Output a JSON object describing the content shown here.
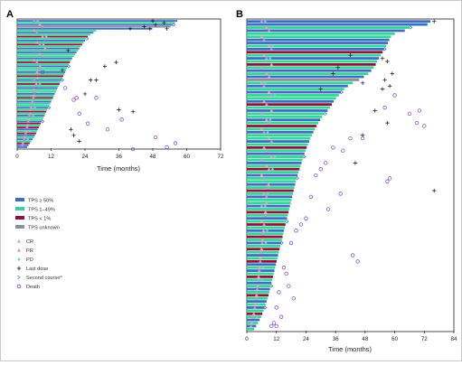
{
  "panels": {
    "A": {
      "letter": "A",
      "x_ticks": [
        "0",
        "12",
        "24",
        "36",
        "48",
        "60",
        "72"
      ],
      "xlabel": "Time (months)"
    },
    "B": {
      "letter": "B",
      "x_ticks": [
        "0",
        "12",
        "24",
        "36",
        "48",
        "60",
        "72",
        "84"
      ],
      "xlabel": "Time (months)"
    }
  },
  "legend": {
    "tps": [
      {
        "label": "TPS ≥ 50%",
        "color": "#3b6fc0"
      },
      {
        "label": "TPS 1–49%",
        "color": "#35d49a"
      },
      {
        "label": "TPS < 1%",
        "color": "#8b1538"
      },
      {
        "label": "TPS unknown",
        "color": "#8a9098"
      }
    ],
    "markers": [
      {
        "label": "CR",
        "symbol": "triangle",
        "color": "#e8a6a0"
      },
      {
        "label": "PR",
        "symbol": "triangle",
        "color": "#b79ae0"
      },
      {
        "label": "PD",
        "symbol": "diamond",
        "color": "#6ad6c8"
      },
      {
        "label": "Last dose",
        "symbol": "plus",
        "color": "#111111"
      },
      {
        "label": "Second course",
        "superscript": "a",
        "symbol": "chevron",
        "color": "#4a6fd0"
      },
      {
        "label": "Death",
        "symbol": "circle",
        "color": "#7a3fc8"
      }
    ]
  },
  "chart_data": [
    {
      "type": "bar",
      "panel": "A",
      "orientation": "horizontal swimmer plot",
      "xlabel": "Time (months)",
      "xlim": [
        0,
        72
      ],
      "n_patients": 65,
      "bars_top_to_bottom": [
        {
          "v": 56.7,
          "t": 0
        },
        {
          "v": 55.9,
          "t": 1
        },
        {
          "v": 55.1,
          "t": 0
        },
        {
          "v": 54.3,
          "t": 3
        },
        {
          "v": 47.8,
          "t": 0
        },
        {
          "v": 28,
          "t": 1
        },
        {
          "v": 27,
          "t": 0
        },
        {
          "v": 26,
          "t": 1
        },
        {
          "v": 25,
          "t": 2
        },
        {
          "v": 24.5,
          "t": 1
        },
        {
          "v": 24,
          "t": 0
        },
        {
          "v": 23.5,
          "t": 1
        },
        {
          "v": 23,
          "t": 2
        },
        {
          "v": 22.5,
          "t": 1
        },
        {
          "v": 22,
          "t": 0
        },
        {
          "v": 21.5,
          "t": 1
        },
        {
          "v": 21,
          "t": 0
        },
        {
          "v": 20.5,
          "t": 1
        },
        {
          "v": 20,
          "t": 1
        },
        {
          "v": 19.5,
          "t": 0
        },
        {
          "v": 19,
          "t": 1
        },
        {
          "v": 18.7,
          "t": 2
        },
        {
          "v": 18.3,
          "t": 1
        },
        {
          "v": 18,
          "t": 0
        },
        {
          "v": 17.7,
          "t": 1
        },
        {
          "v": 17.3,
          "t": 1
        },
        {
          "v": 17,
          "t": 0
        },
        {
          "v": 16.7,
          "t": 1
        },
        {
          "v": 16.3,
          "t": 2
        },
        {
          "v": 16,
          "t": 1
        },
        {
          "v": 15.7,
          "t": 0
        },
        {
          "v": 15.3,
          "t": 1
        },
        {
          "v": 15,
          "t": 2
        },
        {
          "v": 14.7,
          "t": 1
        },
        {
          "v": 14.3,
          "t": 0
        },
        {
          "v": 14,
          "t": 1
        },
        {
          "v": 13.7,
          "t": 1
        },
        {
          "v": 13.3,
          "t": 0
        },
        {
          "v": 13,
          "t": 1
        },
        {
          "v": 12.7,
          "t": 2
        },
        {
          "v": 12.3,
          "t": 1
        },
        {
          "v": 12,
          "t": 0
        },
        {
          "v": 11.7,
          "t": 1
        },
        {
          "v": 11.3,
          "t": 1
        },
        {
          "v": 11,
          "t": 0
        },
        {
          "v": 10.7,
          "t": 1
        },
        {
          "v": 10.3,
          "t": 2
        },
        {
          "v": 10,
          "t": 1
        },
        {
          "v": 9.7,
          "t": 0
        },
        {
          "v": 9.3,
          "t": 1
        },
        {
          "v": 9,
          "t": 1
        },
        {
          "v": 8.7,
          "t": 0
        },
        {
          "v": 8.3,
          "t": 2
        },
        {
          "v": 8,
          "t": 1
        },
        {
          "v": 7.7,
          "t": 2
        },
        {
          "v": 7.3,
          "t": 0
        },
        {
          "v": 7,
          "t": 1
        },
        {
          "v": 6.7,
          "t": 2
        },
        {
          "v": 6.3,
          "t": 0
        },
        {
          "v": 6,
          "t": 1
        },
        {
          "v": 5.5,
          "t": 0
        },
        {
          "v": 5,
          "t": 1
        },
        {
          "v": 4.5,
          "t": 2
        },
        {
          "v": 4,
          "t": 0
        },
        {
          "v": 3.5,
          "t": 0
        }
      ],
      "deaths": [
        [
          9,
          26
        ],
        [
          17,
          34
        ],
        [
          21,
          39
        ],
        [
          20,
          40
        ],
        [
          22,
          47
        ],
        [
          28,
          39
        ],
        [
          41,
          65
        ],
        [
          37,
          50
        ],
        [
          25,
          52
        ],
        [
          32,
          55
        ],
        [
          49,
          59
        ],
        [
          56,
          62
        ],
        [
          53,
          64
        ]
      ],
      "last_doses": [
        [
          24,
          37
        ],
        [
          31,
          23
        ],
        [
          28,
          30
        ],
        [
          35,
          21
        ],
        [
          48,
          0
        ],
        [
          49,
          2
        ],
        [
          45,
          3
        ],
        [
          53,
          4
        ],
        [
          40,
          4
        ],
        [
          36,
          45
        ],
        [
          41,
          46
        ],
        [
          47,
          4
        ],
        [
          52,
          1
        ],
        [
          18,
          15
        ],
        [
          26,
          30
        ],
        [
          16,
          25
        ],
        [
          19,
          55
        ],
        [
          20,
          58
        ],
        [
          22,
          61
        ]
      ]
    },
    {
      "type": "bar",
      "panel": "B",
      "orientation": "horizontal swimmer plot",
      "xlabel": "Time (months)",
      "xlim": [
        0,
        84
      ],
      "n_patients": 101,
      "bars_top_to_bottom": [
        {
          "v": 74.5,
          "t": 0
        },
        {
          "v": 73.3,
          "t": 0
        },
        {
          "v": 66.2,
          "t": 1
        },
        {
          "v": 64.1,
          "t": 0
        },
        {
          "v": 60,
          "t": 1
        },
        {
          "v": 58.5,
          "t": 1
        },
        {
          "v": 57.8,
          "t": 0
        },
        {
          "v": 57.2,
          "t": 0
        },
        {
          "v": 56.5,
          "t": 1
        },
        {
          "v": 55.7,
          "t": 0
        },
        {
          "v": 55.1,
          "t": 2
        },
        {
          "v": 54.3,
          "t": 1
        },
        {
          "v": 53.6,
          "t": 0
        },
        {
          "v": 52.9,
          "t": 1
        },
        {
          "v": 52.3,
          "t": 2
        },
        {
          "v": 51.5,
          "t": 1
        },
        {
          "v": 50.5,
          "t": 0
        },
        {
          "v": 49.3,
          "t": 1
        },
        {
          "v": 47.5,
          "t": 0
        },
        {
          "v": 45.6,
          "t": 3
        },
        {
          "v": 43,
          "t": 1
        },
        {
          "v": 41,
          "t": 0
        },
        {
          "v": 39.5,
          "t": 1
        },
        {
          "v": 38.2,
          "t": 0
        },
        {
          "v": 37.3,
          "t": 1
        },
        {
          "v": 36.2,
          "t": 1
        },
        {
          "v": 35.3,
          "t": 0
        },
        {
          "v": 34.5,
          "t": 2
        },
        {
          "v": 33.7,
          "t": 1
        },
        {
          "v": 32.8,
          "t": 0
        },
        {
          "v": 31.6,
          "t": 1
        },
        {
          "v": 30.6,
          "t": 1
        },
        {
          "v": 29.8,
          "t": 0
        },
        {
          "v": 29,
          "t": 1
        },
        {
          "v": 28.3,
          "t": 2
        },
        {
          "v": 27.6,
          "t": 1
        },
        {
          "v": 27,
          "t": 0
        },
        {
          "v": 26.4,
          "t": 1
        },
        {
          "v": 25.8,
          "t": 1
        },
        {
          "v": 25.3,
          "t": 0
        },
        {
          "v": 24.8,
          "t": 1
        },
        {
          "v": 24.3,
          "t": 2
        },
        {
          "v": 23.8,
          "t": 1
        },
        {
          "v": 23.4,
          "t": 0
        },
        {
          "v": 23,
          "t": 1
        },
        {
          "v": 22.6,
          "t": 1
        },
        {
          "v": 22.2,
          "t": 0
        },
        {
          "v": 21.8,
          "t": 1
        },
        {
          "v": 21.4,
          "t": 2
        },
        {
          "v": 21,
          "t": 1
        },
        {
          "v": 20.6,
          "t": 0
        },
        {
          "v": 20.2,
          "t": 1
        },
        {
          "v": 19.9,
          "t": 1
        },
        {
          "v": 19.6,
          "t": 0
        },
        {
          "v": 19.3,
          "t": 1
        },
        {
          "v": 19,
          "t": 2
        },
        {
          "v": 18.7,
          "t": 1
        },
        {
          "v": 18.4,
          "t": 0
        },
        {
          "v": 18.1,
          "t": 1
        },
        {
          "v": 17.8,
          "t": 1
        },
        {
          "v": 17.5,
          "t": 0
        },
        {
          "v": 17.2,
          "t": 1
        },
        {
          "v": 16.9,
          "t": 2
        },
        {
          "v": 16.6,
          "t": 1
        },
        {
          "v": 16.3,
          "t": 0
        },
        {
          "v": 16,
          "t": 1
        },
        {
          "v": 15.7,
          "t": 2
        },
        {
          "v": 15.4,
          "t": 1
        },
        {
          "v": 15.1,
          "t": 0
        },
        {
          "v": 14.8,
          "t": 1
        },
        {
          "v": 14.5,
          "t": 2
        },
        {
          "v": 14.2,
          "t": 1
        },
        {
          "v": 13.9,
          "t": 0
        },
        {
          "v": 13.6,
          "t": 1
        },
        {
          "v": 13.3,
          "t": 2
        },
        {
          "v": 13,
          "t": 1
        },
        {
          "v": 12.7,
          "t": 0
        },
        {
          "v": 12.4,
          "t": 1
        },
        {
          "v": 12.1,
          "t": 2
        },
        {
          "v": 11.8,
          "t": 0
        },
        {
          "v": 11.5,
          "t": 1
        },
        {
          "v": 11.2,
          "t": 0
        },
        {
          "v": 10.9,
          "t": 1
        },
        {
          "v": 10.6,
          "t": 2
        },
        {
          "v": 10.3,
          "t": 1
        },
        {
          "v": 10,
          "t": 0
        },
        {
          "v": 9.7,
          "t": 1
        },
        {
          "v": 9.4,
          "t": 0
        },
        {
          "v": 9.1,
          "t": 1
        },
        {
          "v": 8.8,
          "t": 2
        },
        {
          "v": 8.4,
          "t": 1
        },
        {
          "v": 8,
          "t": 0
        },
        {
          "v": 7.6,
          "t": 1
        },
        {
          "v": 7.2,
          "t": 0
        },
        {
          "v": 6.8,
          "t": 1
        },
        {
          "v": 6.3,
          "t": 2
        },
        {
          "v": 5.8,
          "t": 1
        },
        {
          "v": 5.2,
          "t": 0
        },
        {
          "v": 4.5,
          "t": 1
        },
        {
          "v": 3.8,
          "t": 0
        },
        {
          "v": 3,
          "t": 1
        }
      ],
      "deaths": [
        [
          70,
          29
        ],
        [
          66,
          30
        ],
        [
          69,
          33
        ],
        [
          72,
          34
        ],
        [
          58,
          51
        ],
        [
          57,
          52
        ],
        [
          47,
          38
        ],
        [
          42,
          38
        ],
        [
          39,
          42
        ],
        [
          35,
          41
        ],
        [
          32,
          46
        ],
        [
          30,
          48
        ],
        [
          28,
          50
        ],
        [
          38,
          56
        ],
        [
          26,
          57
        ],
        [
          33,
          61
        ],
        [
          24,
          64
        ],
        [
          22,
          66
        ],
        [
          20,
          68
        ],
        [
          18,
          72
        ],
        [
          43,
          76
        ],
        [
          45,
          78
        ],
        [
          15,
          80
        ],
        [
          16,
          82
        ],
        [
          17,
          86
        ],
        [
          13,
          88
        ],
        [
          19,
          90
        ],
        [
          12,
          93
        ],
        [
          14,
          96
        ],
        [
          10,
          99
        ],
        [
          12,
          99
        ],
        [
          11,
          98
        ],
        [
          56,
          28
        ],
        [
          60,
          24
        ]
      ],
      "last_doses": [
        [
          76,
          0
        ],
        [
          57,
          13
        ],
        [
          59,
          17
        ],
        [
          58,
          21
        ],
        [
          57,
          33
        ],
        [
          56,
          19
        ],
        [
          55,
          22
        ],
        [
          52,
          29
        ],
        [
          47,
          37
        ],
        [
          44,
          46
        ],
        [
          76,
          55
        ],
        [
          47,
          20
        ],
        [
          37,
          15
        ],
        [
          42,
          11
        ],
        [
          35,
          17
        ],
        [
          30,
          22
        ],
        [
          55,
          12
        ]
      ]
    }
  ]
}
